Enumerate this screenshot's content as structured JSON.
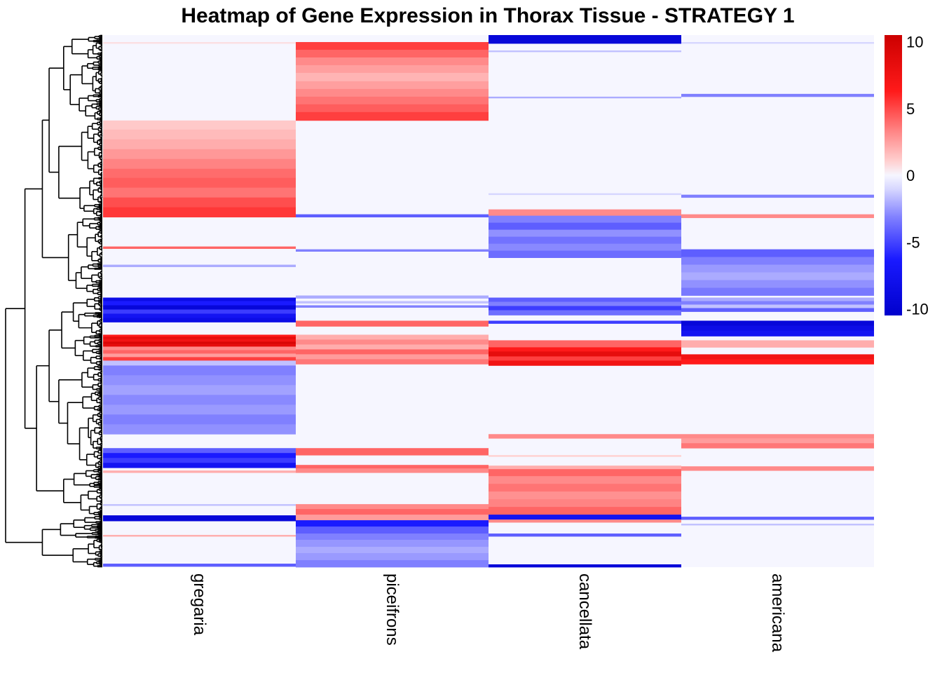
{
  "chart_data": {
    "type": "heatmap",
    "title": "Heatmap of Gene Expression in Thorax Tissue - STRATEGY 1",
    "columns": [
      "gregaria",
      "piceifrons",
      "cancellata",
      "americana"
    ],
    "row_count": 760,
    "default_value": 0,
    "color_scale": {
      "min": -10,
      "max": 10,
      "low_color": "#0000cc",
      "mid_color": "#f5f5ff",
      "high_color": "#cc0000",
      "stops": [
        {
          "value": -10,
          "color": "#0000cc"
        },
        {
          "value": -6,
          "color": "#1a1aff"
        },
        {
          "value": -3,
          "color": "#8080ff"
        },
        {
          "value": -1,
          "color": "#d6d6ff"
        },
        {
          "value": 0,
          "color": "#f6f6ff"
        },
        {
          "value": 1,
          "color": "#ffd0d0"
        },
        {
          "value": 3,
          "color": "#ff8a8a"
        },
        {
          "value": 6,
          "color": "#ff1a1a"
        },
        {
          "value": 10,
          "color": "#cc0000"
        }
      ]
    },
    "legend": {
      "ticks": [
        10,
        5,
        0,
        -5,
        -10
      ],
      "tick_labels": [
        "10",
        "5",
        "0",
        "-5",
        "-10"
      ],
      "position": "right"
    },
    "row_blocks": {
      "gregaria": [
        {
          "start": 10,
          "end": 12,
          "values": [
            0.6
          ]
        },
        {
          "start": 122,
          "end": 260,
          "values": [
            1.2,
            1.6,
            2.0,
            2.6,
            3.2,
            3.8,
            4.2,
            3.6,
            4.6,
            5.2
          ]
        },
        {
          "start": 302,
          "end": 305,
          "values": [
            4
          ]
        },
        {
          "start": 328,
          "end": 331,
          "values": [
            -2
          ]
        },
        {
          "start": 375,
          "end": 410,
          "values": [
            -8,
            -6,
            -9,
            -5,
            -7,
            -8
          ]
        },
        {
          "start": 428,
          "end": 445,
          "values": [
            6,
            8,
            7,
            9,
            8
          ]
        },
        {
          "start": 445,
          "end": 465,
          "values": [
            3,
            4,
            2.5,
            5
          ]
        },
        {
          "start": 465,
          "end": 472,
          "values": [
            -1.5
          ]
        },
        {
          "start": 472,
          "end": 570,
          "values": [
            -3,
            -2.6,
            -2.2,
            -2.8,
            -2.4,
            -3,
            -2.6
          ]
        },
        {
          "start": 590,
          "end": 618,
          "values": [
            -4,
            -6,
            -5,
            -7
          ]
        },
        {
          "start": 622,
          "end": 625,
          "values": [
            2
          ]
        },
        {
          "start": 670,
          "end": 672,
          "values": [
            -1.5
          ]
        },
        {
          "start": 686,
          "end": 694,
          "values": [
            -9
          ]
        },
        {
          "start": 714,
          "end": 716,
          "values": [
            2
          ]
        },
        {
          "start": 755,
          "end": 759,
          "values": [
            -4
          ]
        }
      ],
      "piceifrons": [
        {
          "start": 10,
          "end": 122,
          "values": [
            5,
            4,
            3,
            2.4,
            1.8,
            2.4,
            3,
            3.6,
            4.2,
            5
          ]
        },
        {
          "start": 256,
          "end": 260,
          "values": [
            -4
          ]
        },
        {
          "start": 306,
          "end": 309,
          "values": [
            -3
          ]
        },
        {
          "start": 372,
          "end": 376,
          "values": [
            -2
          ]
        },
        {
          "start": 380,
          "end": 383,
          "values": [
            -1.5
          ]
        },
        {
          "start": 386,
          "end": 389,
          "values": [
            -3
          ]
        },
        {
          "start": 408,
          "end": 416,
          "values": [
            4
          ]
        },
        {
          "start": 428,
          "end": 470,
          "values": [
            2,
            3,
            2,
            4,
            2.5,
            3.5
          ]
        },
        {
          "start": 590,
          "end": 600,
          "values": [
            4
          ]
        },
        {
          "start": 614,
          "end": 625,
          "values": [
            4,
            3
          ]
        },
        {
          "start": 670,
          "end": 693,
          "values": [
            3,
            4,
            2.5
          ]
        },
        {
          "start": 693,
          "end": 760,
          "values": [
            -6,
            -4,
            -3,
            -2.5,
            -2,
            -2.4,
            -3
          ]
        }
      ],
      "cancellata": [
        {
          "start": 0,
          "end": 12,
          "values": [
            -9
          ]
        },
        {
          "start": 22,
          "end": 24,
          "values": [
            -1.5
          ]
        },
        {
          "start": 88,
          "end": 90,
          "values": [
            -2
          ]
        },
        {
          "start": 226,
          "end": 228,
          "values": [
            -1
          ]
        },
        {
          "start": 249,
          "end": 258,
          "values": [
            3
          ]
        },
        {
          "start": 258,
          "end": 318,
          "values": [
            -3,
            -4,
            -2.6,
            -3.4,
            -2.8,
            -3.6
          ]
        },
        {
          "start": 375,
          "end": 400,
          "values": [
            -4,
            -3,
            -5,
            -3.5
          ]
        },
        {
          "start": 408,
          "end": 412,
          "values": [
            -5
          ]
        },
        {
          "start": 436,
          "end": 446,
          "values": [
            4
          ]
        },
        {
          "start": 446,
          "end": 472,
          "values": [
            6,
            8,
            5,
            7
          ]
        },
        {
          "start": 570,
          "end": 576,
          "values": [
            3
          ]
        },
        {
          "start": 600,
          "end": 602,
          "values": [
            1
          ]
        },
        {
          "start": 615,
          "end": 620,
          "values": [
            2
          ]
        },
        {
          "start": 620,
          "end": 685,
          "values": [
            4,
            3,
            3.6,
            2.8,
            3.2,
            4
          ]
        },
        {
          "start": 685,
          "end": 692,
          "values": [
            -7
          ]
        },
        {
          "start": 692,
          "end": 696,
          "values": [
            3
          ]
        },
        {
          "start": 712,
          "end": 716,
          "values": [
            -4
          ]
        },
        {
          "start": 756,
          "end": 760,
          "values": [
            -9
          ]
        }
      ],
      "americana": [
        {
          "start": 10,
          "end": 12,
          "values": [
            -1
          ]
        },
        {
          "start": 84,
          "end": 88,
          "values": [
            -3
          ]
        },
        {
          "start": 228,
          "end": 232,
          "values": [
            -3
          ]
        },
        {
          "start": 256,
          "end": 261,
          "values": [
            3
          ]
        },
        {
          "start": 306,
          "end": 372,
          "values": [
            -4,
            -3,
            -2.4,
            -2,
            -2.6,
            -3.2
          ]
        },
        {
          "start": 375,
          "end": 395,
          "values": [
            -2,
            -3,
            -1.5,
            -4
          ]
        },
        {
          "start": 408,
          "end": 430,
          "values": [
            -9,
            -8,
            -7
          ]
        },
        {
          "start": 436,
          "end": 446,
          "values": [
            2
          ]
        },
        {
          "start": 456,
          "end": 470,
          "values": [
            7,
            6
          ]
        },
        {
          "start": 570,
          "end": 590,
          "values": [
            3,
            2.5,
            3.5
          ]
        },
        {
          "start": 616,
          "end": 622,
          "values": [
            3
          ]
        },
        {
          "start": 688,
          "end": 692,
          "values": [
            -4
          ]
        },
        {
          "start": 698,
          "end": 700,
          "values": [
            -1.5
          ]
        }
      ]
    }
  }
}
